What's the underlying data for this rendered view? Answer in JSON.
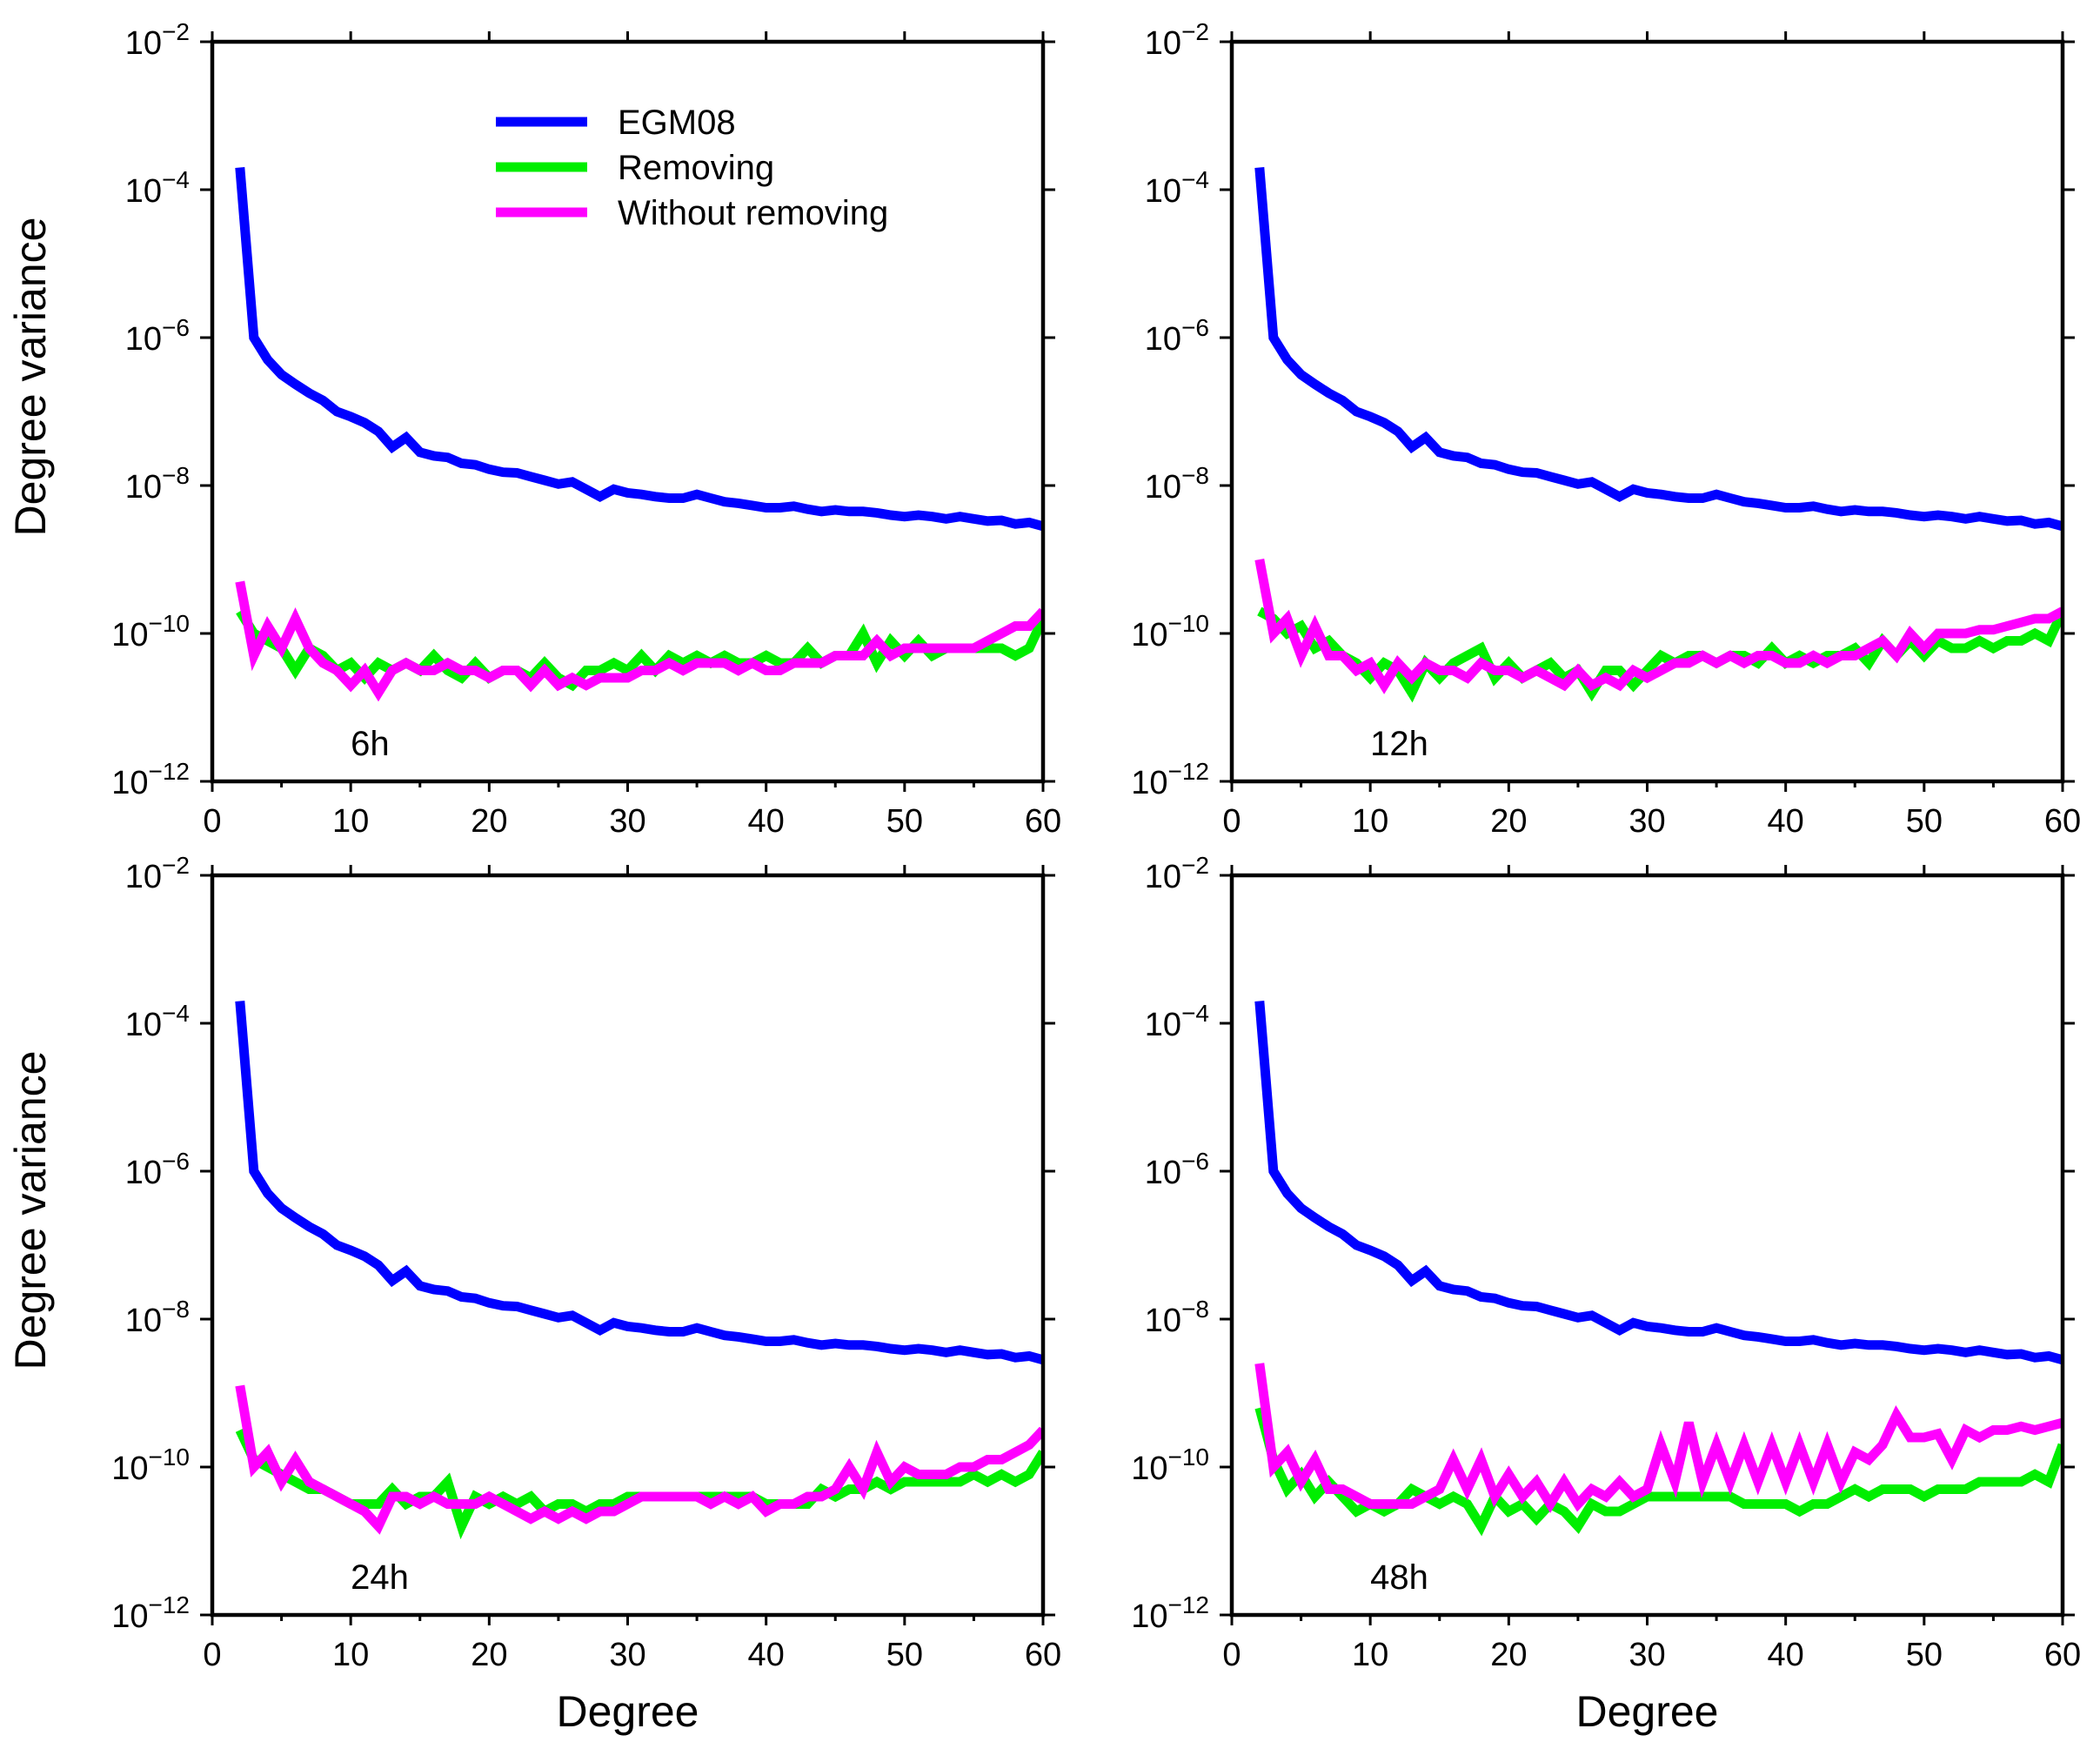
{
  "chart_data": {
    "type": "line",
    "layout": "2x2 panel grid",
    "x_axis": {
      "label": "Degree",
      "range": [
        0,
        60
      ],
      "ticks": [
        0,
        10,
        20,
        30,
        40,
        50,
        60
      ],
      "tick_labels": [
        "0",
        "10",
        "20",
        "30",
        "40",
        "50",
        "60"
      ]
    },
    "y_axis": {
      "label": "Degree variance",
      "scale": "log",
      "range": [
        1e-12,
        0.01
      ],
      "tick_exponents": [
        -2,
        -4,
        -6,
        -8,
        -10,
        -12
      ],
      "tick_base": "10",
      "tick_exp_labels": [
        "−2",
        "−4",
        "−6",
        "−8",
        "−10",
        "−12"
      ]
    },
    "legend": {
      "placement": "top-left-inside-first-panel",
      "entries": [
        {
          "name": "EGM08",
          "color": "#0000ff"
        },
        {
          "name": "Removing",
          "color": "#00ee00"
        },
        {
          "name": "Without removing",
          "color": "#ff00ff"
        }
      ]
    },
    "degrees": [
      2,
      3,
      4,
      5,
      6,
      7,
      8,
      9,
      10,
      11,
      12,
      13,
      14,
      15,
      16,
      17,
      18,
      19,
      20,
      21,
      22,
      23,
      24,
      25,
      26,
      27,
      28,
      29,
      30,
      31,
      32,
      33,
      34,
      35,
      36,
      37,
      38,
      39,
      40,
      41,
      42,
      43,
      44,
      45,
      46,
      47,
      48,
      49,
      50,
      51,
      52,
      53,
      54,
      55,
      56,
      57,
      58,
      59,
      60
    ],
    "egm08_log10": [
      -3.7,
      -6.0,
      -6.3,
      -6.5,
      -6.63,
      -6.75,
      -6.85,
      -7.0,
      -7.07,
      -7.15,
      -7.27,
      -7.48,
      -7.35,
      -7.55,
      -7.6,
      -7.62,
      -7.7,
      -7.72,
      -7.78,
      -7.82,
      -7.83,
      -7.88,
      -7.93,
      -7.98,
      -7.95,
      -8.05,
      -8.15,
      -8.05,
      -8.1,
      -8.12,
      -8.15,
      -8.17,
      -8.17,
      -8.12,
      -8.17,
      -8.22,
      -8.24,
      -8.27,
      -8.3,
      -8.3,
      -8.28,
      -8.32,
      -8.35,
      -8.33,
      -8.35,
      -8.35,
      -8.37,
      -8.4,
      -8.42,
      -8.4,
      -8.42,
      -8.45,
      -8.42,
      -8.45,
      -8.48,
      -8.47,
      -8.52,
      -8.5,
      -8.55
    ],
    "panels": [
      {
        "label": "6h",
        "removing_log10": [
          -9.7,
          -10.0,
          -10.1,
          -10.2,
          -10.5,
          -10.2,
          -10.3,
          -10.5,
          -10.4,
          -10.6,
          -10.4,
          -10.5,
          -10.4,
          -10.5,
          -10.3,
          -10.5,
          -10.6,
          -10.4,
          -10.6,
          -10.5,
          -10.5,
          -10.6,
          -10.4,
          -10.6,
          -10.7,
          -10.5,
          -10.5,
          -10.4,
          -10.5,
          -10.3,
          -10.5,
          -10.3,
          -10.4,
          -10.3,
          -10.4,
          -10.3,
          -10.4,
          -10.4,
          -10.3,
          -10.4,
          -10.4,
          -10.2,
          -10.4,
          -10.3,
          -10.3,
          -10.0,
          -10.4,
          -10.1,
          -10.3,
          -10.1,
          -10.3,
          -10.2,
          -10.2,
          -10.2,
          -10.2,
          -10.2,
          -10.3,
          -10.2,
          -9.8
        ],
        "without_log10": [
          -9.3,
          -10.3,
          -9.9,
          -10.2,
          -9.8,
          -10.2,
          -10.4,
          -10.5,
          -10.7,
          -10.5,
          -10.8,
          -10.5,
          -10.4,
          -10.5,
          -10.5,
          -10.4,
          -10.5,
          -10.5,
          -10.6,
          -10.5,
          -10.5,
          -10.7,
          -10.5,
          -10.7,
          -10.6,
          -10.7,
          -10.6,
          -10.6,
          -10.6,
          -10.5,
          -10.5,
          -10.4,
          -10.5,
          -10.4,
          -10.4,
          -10.4,
          -10.5,
          -10.4,
          -10.5,
          -10.5,
          -10.4,
          -10.4,
          -10.4,
          -10.3,
          -10.3,
          -10.3,
          -10.1,
          -10.3,
          -10.2,
          -10.2,
          -10.2,
          -10.2,
          -10.2,
          -10.2,
          -10.1,
          -10.0,
          -9.9,
          -9.9,
          -9.7
        ]
      },
      {
        "label": "12h",
        "removing_log10": [
          -9.7,
          -9.8,
          -10.0,
          -9.9,
          -10.2,
          -10.1,
          -10.3,
          -10.4,
          -10.6,
          -10.4,
          -10.5,
          -10.8,
          -10.4,
          -10.6,
          -10.4,
          -10.3,
          -10.2,
          -10.6,
          -10.4,
          -10.6,
          -10.5,
          -10.4,
          -10.6,
          -10.5,
          -10.8,
          -10.5,
          -10.5,
          -10.7,
          -10.5,
          -10.3,
          -10.4,
          -10.3,
          -10.3,
          -10.4,
          -10.3,
          -10.3,
          -10.4,
          -10.2,
          -10.4,
          -10.3,
          -10.4,
          -10.3,
          -10.3,
          -10.2,
          -10.4,
          -10.1,
          -10.3,
          -10.1,
          -10.3,
          -10.1,
          -10.2,
          -10.2,
          -10.1,
          -10.2,
          -10.1,
          -10.1,
          -10.0,
          -10.1,
          -9.7
        ],
        "without_log10": [
          -9.0,
          -10.0,
          -9.8,
          -10.3,
          -9.9,
          -10.3,
          -10.3,
          -10.5,
          -10.4,
          -10.7,
          -10.4,
          -10.6,
          -10.4,
          -10.5,
          -10.5,
          -10.6,
          -10.4,
          -10.5,
          -10.5,
          -10.6,
          -10.5,
          -10.6,
          -10.7,
          -10.5,
          -10.7,
          -10.6,
          -10.7,
          -10.5,
          -10.6,
          -10.5,
          -10.4,
          -10.4,
          -10.3,
          -10.4,
          -10.3,
          -10.4,
          -10.3,
          -10.3,
          -10.4,
          -10.4,
          -10.3,
          -10.4,
          -10.3,
          -10.3,
          -10.2,
          -10.1,
          -10.3,
          -10.0,
          -10.2,
          -10.0,
          -10.0,
          -10.0,
          -9.95,
          -9.95,
          -9.9,
          -9.85,
          -9.8,
          -9.8,
          -9.7
        ]
      },
      {
        "label": "24h",
        "removing_log10": [
          -9.5,
          -9.9,
          -10.0,
          -10.1,
          -10.2,
          -10.3,
          -10.3,
          -10.4,
          -10.5,
          -10.5,
          -10.5,
          -10.3,
          -10.5,
          -10.4,
          -10.4,
          -10.2,
          -10.8,
          -10.4,
          -10.5,
          -10.4,
          -10.5,
          -10.4,
          -10.6,
          -10.5,
          -10.5,
          -10.6,
          -10.5,
          -10.5,
          -10.4,
          -10.4,
          -10.4,
          -10.4,
          -10.4,
          -10.4,
          -10.4,
          -10.4,
          -10.4,
          -10.4,
          -10.5,
          -10.5,
          -10.5,
          -10.5,
          -10.3,
          -10.4,
          -10.3,
          -10.3,
          -10.2,
          -10.3,
          -10.2,
          -10.2,
          -10.2,
          -10.2,
          -10.2,
          -10.1,
          -10.2,
          -10.1,
          -10.2,
          -10.1,
          -9.8
        ],
        "without_log10": [
          -8.9,
          -10.0,
          -9.8,
          -10.2,
          -9.9,
          -10.2,
          -10.3,
          -10.4,
          -10.5,
          -10.6,
          -10.8,
          -10.4,
          -10.4,
          -10.5,
          -10.4,
          -10.5,
          -10.5,
          -10.5,
          -10.4,
          -10.5,
          -10.6,
          -10.7,
          -10.6,
          -10.7,
          -10.6,
          -10.7,
          -10.6,
          -10.6,
          -10.5,
          -10.4,
          -10.4,
          -10.4,
          -10.4,
          -10.4,
          -10.5,
          -10.4,
          -10.5,
          -10.4,
          -10.6,
          -10.5,
          -10.5,
          -10.4,
          -10.4,
          -10.3,
          -10.0,
          -10.3,
          -9.8,
          -10.2,
          -10.0,
          -10.1,
          -10.1,
          -10.1,
          -10.0,
          -10.0,
          -9.9,
          -9.9,
          -9.8,
          -9.7,
          -9.5
        ]
      },
      {
        "label": "48h",
        "removing_log10": [
          -9.2,
          -9.9,
          -10.3,
          -10.1,
          -10.4,
          -10.2,
          -10.4,
          -10.6,
          -10.5,
          -10.6,
          -10.5,
          -10.3,
          -10.4,
          -10.5,
          -10.4,
          -10.5,
          -10.8,
          -10.4,
          -10.6,
          -10.5,
          -10.7,
          -10.5,
          -10.6,
          -10.8,
          -10.5,
          -10.6,
          -10.6,
          -10.5,
          -10.4,
          -10.4,
          -10.4,
          -10.4,
          -10.4,
          -10.4,
          -10.4,
          -10.5,
          -10.5,
          -10.5,
          -10.5,
          -10.6,
          -10.5,
          -10.5,
          -10.4,
          -10.3,
          -10.4,
          -10.3,
          -10.3,
          -10.3,
          -10.4,
          -10.3,
          -10.3,
          -10.3,
          -10.2,
          -10.2,
          -10.2,
          -10.2,
          -10.1,
          -10.2,
          -9.7
        ],
        "without_log10": [
          -8.6,
          -10.0,
          -9.8,
          -10.2,
          -9.9,
          -10.3,
          -10.3,
          -10.4,
          -10.5,
          -10.5,
          -10.5,
          -10.5,
          -10.4,
          -10.3,
          -9.9,
          -10.3,
          -9.9,
          -10.4,
          -10.1,
          -10.4,
          -10.2,
          -10.5,
          -10.2,
          -10.5,
          -10.3,
          -10.4,
          -10.2,
          -10.4,
          -10.3,
          -9.7,
          -10.2,
          -9.4,
          -10.2,
          -9.7,
          -10.2,
          -9.7,
          -10.2,
          -9.7,
          -10.2,
          -9.7,
          -10.2,
          -9.7,
          -10.2,
          -9.8,
          -9.9,
          -9.7,
          -9.3,
          -9.6,
          -9.6,
          -9.55,
          -9.9,
          -9.5,
          -9.6,
          -9.5,
          -9.5,
          -9.45,
          -9.5,
          -9.45,
          -9.4
        ]
      }
    ]
  }
}
